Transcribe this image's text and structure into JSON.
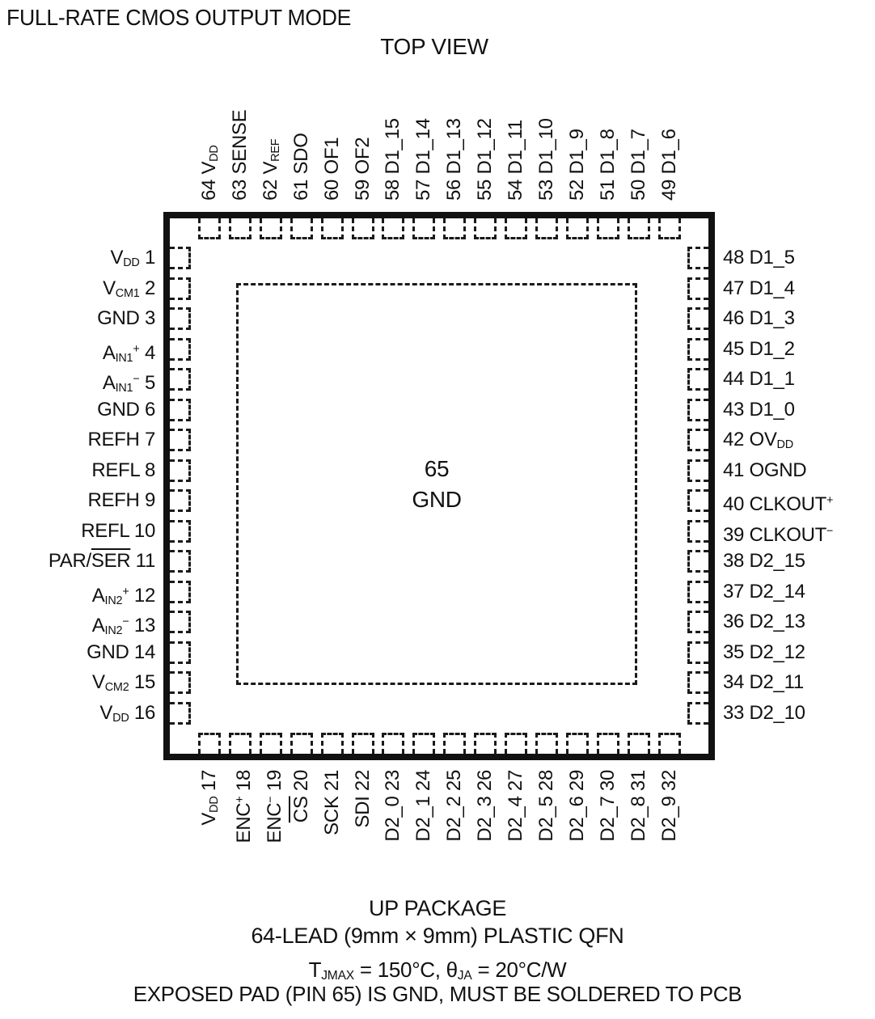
{
  "title": "FULL-RATE CMOS OUTPUT MODE",
  "view_label": "TOP VIEW",
  "center_pin": {
    "number": "65",
    "name": "GND"
  },
  "pins": {
    "top": [
      {
        "num": "64",
        "name": "V_{DD}"
      },
      {
        "num": "63",
        "name": "SENSE"
      },
      {
        "num": "62",
        "name": "V_{REF}"
      },
      {
        "num": "61",
        "name": "SDO"
      },
      {
        "num": "60",
        "name": "OF1"
      },
      {
        "num": "59",
        "name": "OF2"
      },
      {
        "num": "58",
        "name": "D1_15"
      },
      {
        "num": "57",
        "name": "D1_14"
      },
      {
        "num": "56",
        "name": "D1_13"
      },
      {
        "num": "55",
        "name": "D1_12"
      },
      {
        "num": "54",
        "name": "D1_11"
      },
      {
        "num": "53",
        "name": "D1_10"
      },
      {
        "num": "52",
        "name": "D1_9"
      },
      {
        "num": "51",
        "name": "D1_8"
      },
      {
        "num": "50",
        "name": "D1_7"
      },
      {
        "num": "49",
        "name": "D1_6"
      }
    ],
    "left": [
      {
        "num": "1",
        "name": "V_{DD}"
      },
      {
        "num": "2",
        "name": "V_{CM1}"
      },
      {
        "num": "3",
        "name": "GND"
      },
      {
        "num": "4",
        "name": "A_{IN1}^{+}"
      },
      {
        "num": "5",
        "name": "A_{IN1}^{−}"
      },
      {
        "num": "6",
        "name": "GND"
      },
      {
        "num": "7",
        "name": "REFH"
      },
      {
        "num": "8",
        "name": "REFL"
      },
      {
        "num": "9",
        "name": "REFH"
      },
      {
        "num": "10",
        "name": "REFL"
      },
      {
        "num": "11",
        "name": "PAR/~{SER}"
      },
      {
        "num": "12",
        "name": "A_{IN2}^{+}"
      },
      {
        "num": "13",
        "name": "A_{IN2}^{−}"
      },
      {
        "num": "14",
        "name": "GND"
      },
      {
        "num": "15",
        "name": "V_{CM2}"
      },
      {
        "num": "16",
        "name": "V_{DD}"
      }
    ],
    "right": [
      {
        "num": "48",
        "name": "D1_5"
      },
      {
        "num": "47",
        "name": "D1_4"
      },
      {
        "num": "46",
        "name": "D1_3"
      },
      {
        "num": "45",
        "name": "D1_2"
      },
      {
        "num": "44",
        "name": "D1_1"
      },
      {
        "num": "43",
        "name": "D1_0"
      },
      {
        "num": "42",
        "name": "OV_{DD}"
      },
      {
        "num": "41",
        "name": "OGND"
      },
      {
        "num": "40",
        "name": "CLKOUT^{+}"
      },
      {
        "num": "39",
        "name": "CLKOUT^{−}"
      },
      {
        "num": "38",
        "name": "D2_15"
      },
      {
        "num": "37",
        "name": "D2_14"
      },
      {
        "num": "36",
        "name": "D2_13"
      },
      {
        "num": "35",
        "name": "D2_12"
      },
      {
        "num": "34",
        "name": "D2_11"
      },
      {
        "num": "33",
        "name": "D2_10"
      }
    ],
    "bottom": [
      {
        "num": "17",
        "name": "V_{DD}"
      },
      {
        "num": "18",
        "name": "ENC^{+}"
      },
      {
        "num": "19",
        "name": "ENC^{−}"
      },
      {
        "num": "20",
        "name": "~{CS}"
      },
      {
        "num": "21",
        "name": "SCK"
      },
      {
        "num": "22",
        "name": "SDI"
      },
      {
        "num": "23",
        "name": "D2_0"
      },
      {
        "num": "24",
        "name": "D2_1"
      },
      {
        "num": "25",
        "name": "D2_2"
      },
      {
        "num": "26",
        "name": "D2_3"
      },
      {
        "num": "27",
        "name": "D2_4"
      },
      {
        "num": "28",
        "name": "D2_5"
      },
      {
        "num": "29",
        "name": "D2_6"
      },
      {
        "num": "30",
        "name": "D2_7"
      },
      {
        "num": "31",
        "name": "D2_8"
      },
      {
        "num": "32",
        "name": "D2_9"
      }
    ]
  },
  "footer": {
    "package_name": "UP PACKAGE",
    "package_desc": "64-LEAD (9mm × 9mm) PLASTIC QFN",
    "thermal": "T_{JMAX} = 150°C, θ_{JA} = 20°C/W",
    "note": "EXPOSED PAD (PIN 65) IS GND, MUST BE SOLDERED TO PCB"
  }
}
